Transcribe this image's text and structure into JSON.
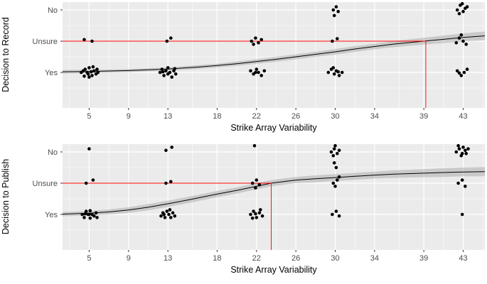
{
  "styles": {
    "panel_bg": "#EBEBEB",
    "grid": "#FFFFFF",
    "point": "#000000",
    "curve": "#000000",
    "ribbon": "#A0A0A0",
    "ribbon_opacity": 0.45,
    "reference": "#FF0000",
    "tick_text": "#4D4D4D",
    "axis_text": "#000000"
  },
  "chart_data": [
    {
      "type": "scatter",
      "subtype": "jittered points with logistic smooth and confidence ribbon",
      "title": "",
      "ylabel": "Decision to Record",
      "xlabel": "Strike Array Variability",
      "x_ticks": [
        5,
        9,
        13,
        18,
        22,
        26,
        30,
        34,
        39,
        43
      ],
      "x_range": [
        2.3,
        45.2
      ],
      "y_range": [
        -0.14,
        3.25
      ],
      "grid": true,
      "legend": false,
      "y_levels": [
        {
          "value": 1,
          "label": "Yes"
        },
        {
          "value": 2,
          "label": "Unsure"
        },
        {
          "value": 3,
          "label": "No"
        }
      ],
      "reference": {
        "x": 39.2,
        "y": 2,
        "note": "red crosshair where smooth crosses Unsure"
      },
      "points": [
        [
          4.2,
          1.0
        ],
        [
          4.5,
          0.88
        ],
        [
          4.6,
          1.1
        ],
        [
          4.8,
          1.0
        ],
        [
          5.0,
          0.85
        ],
        [
          5.0,
          1.15
        ],
        [
          5.2,
          1.02
        ],
        [
          5.3,
          0.9
        ],
        [
          5.5,
          1.05
        ],
        [
          5.7,
          0.95
        ],
        [
          5.8,
          1.1
        ],
        [
          4.4,
          1.05
        ],
        [
          5.9,
          1.0
        ],
        [
          4.9,
          0.95
        ],
        [
          5.4,
          1.18
        ],
        [
          12.2,
          1.0
        ],
        [
          12.4,
          1.1
        ],
        [
          12.6,
          0.9
        ],
        [
          12.8,
          1.05
        ],
        [
          13.0,
          0.95
        ],
        [
          13.0,
          1.15
        ],
        [
          13.2,
          1.0
        ],
        [
          13.4,
          0.85
        ],
        [
          13.6,
          1.05
        ],
        [
          13.8,
          0.95
        ],
        [
          12.5,
          1.02
        ],
        [
          13.7,
          1.12
        ],
        [
          21.4,
          1.05
        ],
        [
          21.7,
          0.95
        ],
        [
          22.0,
          1.1
        ],
        [
          22.2,
          1.0
        ],
        [
          22.5,
          0.9
        ],
        [
          22.8,
          1.05
        ],
        [
          21.9,
          1.0
        ],
        [
          29.3,
          1.0
        ],
        [
          29.6,
          1.1
        ],
        [
          29.9,
          0.95
        ],
        [
          30.1,
          1.05
        ],
        [
          30.4,
          0.9
        ],
        [
          30.7,
          1.0
        ],
        [
          29.8,
          1.15
        ],
        [
          30.3,
          1.02
        ],
        [
          42.4,
          1.05
        ],
        [
          42.8,
          0.9
        ],
        [
          43.1,
          1.0
        ],
        [
          43.4,
          1.1
        ],
        [
          42.6,
          0.98
        ],
        [
          4.5,
          2.05
        ],
        [
          5.3,
          2.0
        ],
        [
          12.9,
          2.0
        ],
        [
          13.3,
          2.1
        ],
        [
          21.5,
          2.0
        ],
        [
          21.9,
          2.1
        ],
        [
          22.2,
          1.95
        ],
        [
          22.5,
          2.05
        ],
        [
          21.7,
          1.9
        ],
        [
          29.7,
          2.0
        ],
        [
          30.2,
          2.08
        ],
        [
          42.3,
          1.95
        ],
        [
          42.6,
          2.1
        ],
        [
          43.0,
          2.0
        ],
        [
          43.3,
          1.9
        ],
        [
          42.8,
          2.2
        ],
        [
          29.8,
          3.0
        ],
        [
          30.1,
          3.1
        ],
        [
          30.3,
          2.95
        ],
        [
          29.9,
          2.82
        ],
        [
          42.4,
          3.0
        ],
        [
          42.7,
          3.15
        ],
        [
          43.0,
          2.95
        ],
        [
          43.2,
          3.05
        ],
        [
          42.6,
          2.88
        ],
        [
          43.4,
          3.1
        ],
        [
          42.9,
          3.2
        ]
      ],
      "curve": {
        "x": [
          2.3,
          5,
          9,
          13,
          16,
          18,
          20,
          22,
          24,
          26,
          28,
          30,
          32,
          34,
          36,
          39,
          41,
          43,
          45.2
        ],
        "y": [
          1.02,
          1.03,
          1.06,
          1.11,
          1.17,
          1.22,
          1.28,
          1.35,
          1.42,
          1.5,
          1.58,
          1.66,
          1.75,
          1.83,
          1.91,
          2.0,
          2.06,
          2.12,
          2.17
        ]
      },
      "ribbon": {
        "upper": [
          1.08,
          1.08,
          1.11,
          1.16,
          1.23,
          1.28,
          1.35,
          1.42,
          1.5,
          1.58,
          1.66,
          1.75,
          1.84,
          1.92,
          2.01,
          2.11,
          2.18,
          2.25,
          2.31
        ],
        "lower": [
          0.96,
          0.98,
          1.01,
          1.06,
          1.11,
          1.16,
          1.21,
          1.28,
          1.34,
          1.42,
          1.5,
          1.57,
          1.66,
          1.74,
          1.81,
          1.89,
          1.94,
          1.99,
          2.03
        ]
      }
    },
    {
      "type": "scatter",
      "subtype": "jittered points with logistic smooth and confidence ribbon",
      "title": "",
      "ylabel": "Decision to Publish",
      "xlabel": "Strike Array Variability",
      "x_ticks": [
        5,
        9,
        13,
        18,
        22,
        26,
        30,
        34,
        39,
        43
      ],
      "x_range": [
        2.3,
        45.2
      ],
      "y_range": [
        -0.14,
        3.25
      ],
      "grid": true,
      "legend": false,
      "y_levels": [
        {
          "value": 1,
          "label": "Yes"
        },
        {
          "value": 2,
          "label": "Unsure"
        },
        {
          "value": 3,
          "label": "No"
        }
      ],
      "reference": {
        "x": 23.5,
        "y": 2,
        "note": "red crosshair where smooth crosses Unsure"
      },
      "points": [
        [
          4.3,
          1.0
        ],
        [
          4.5,
          0.9
        ],
        [
          4.7,
          1.1
        ],
        [
          4.9,
          1.0
        ],
        [
          5.1,
          0.88
        ],
        [
          5.1,
          1.12
        ],
        [
          5.3,
          1.0
        ],
        [
          5.5,
          0.95
        ],
        [
          5.7,
          1.05
        ],
        [
          4.6,
          1.02
        ],
        [
          5.8,
          0.9
        ],
        [
          5.0,
          1.0
        ],
        [
          12.3,
          0.95
        ],
        [
          12.5,
          1.05
        ],
        [
          12.7,
          0.9
        ],
        [
          12.9,
          1.1
        ],
        [
          13.1,
          1.0
        ],
        [
          13.3,
          0.9
        ],
        [
          13.5,
          1.05
        ],
        [
          13.7,
          0.95
        ],
        [
          12.6,
          1.0
        ],
        [
          13.2,
          1.15
        ],
        [
          21.4,
          1.0
        ],
        [
          21.7,
          1.1
        ],
        [
          22.0,
          0.9
        ],
        [
          22.3,
          1.05
        ],
        [
          22.6,
          0.95
        ],
        [
          21.9,
          1.02
        ],
        [
          22.4,
          1.15
        ],
        [
          21.6,
          0.88
        ],
        [
          29.7,
          1.0
        ],
        [
          30.1,
          1.1
        ],
        [
          30.4,
          0.95
        ],
        [
          42.9,
          1.0
        ],
        [
          4.7,
          2.0
        ],
        [
          5.4,
          2.1
        ],
        [
          12.8,
          2.0
        ],
        [
          13.3,
          2.05
        ],
        [
          21.6,
          2.0
        ],
        [
          22.0,
          2.1
        ],
        [
          22.3,
          1.95
        ],
        [
          21.9,
          1.85
        ],
        [
          29.8,
          2.0
        ],
        [
          30.2,
          2.1
        ],
        [
          30.0,
          1.9
        ],
        [
          30.4,
          2.2
        ],
        [
          30.1,
          2.5
        ],
        [
          29.9,
          2.65
        ],
        [
          42.5,
          2.0
        ],
        [
          42.9,
          2.1
        ],
        [
          43.2,
          1.9
        ],
        [
          5.0,
          3.1
        ],
        [
          12.8,
          3.05
        ],
        [
          13.4,
          3.15
        ],
        [
          21.8,
          3.2
        ],
        [
          29.6,
          3.0
        ],
        [
          29.9,
          3.1
        ],
        [
          30.2,
          2.95
        ],
        [
          30.4,
          3.05
        ],
        [
          30.0,
          3.2
        ],
        [
          29.8,
          2.88
        ],
        [
          42.3,
          3.0
        ],
        [
          42.6,
          3.1
        ],
        [
          42.9,
          2.95
        ],
        [
          43.2,
          3.05
        ],
        [
          43.5,
          3.1
        ],
        [
          42.5,
          3.2
        ],
        [
          43.0,
          3.15
        ],
        [
          42.8,
          2.88
        ],
        [
          43.3,
          2.95
        ]
      ],
      "curve": {
        "x": [
          2.3,
          5,
          7,
          9,
          11,
          13,
          15,
          18,
          20,
          22,
          23.5,
          26,
          28,
          30,
          32,
          34,
          36,
          39,
          41,
          43,
          45.2
        ],
        "y": [
          1.01,
          1.04,
          1.08,
          1.14,
          1.23,
          1.34,
          1.46,
          1.65,
          1.77,
          1.9,
          2.0,
          2.1,
          2.14,
          2.18,
          2.22,
          2.26,
          2.29,
          2.32,
          2.34,
          2.36,
          2.37
        ]
      },
      "ribbon": {
        "upper": [
          1.08,
          1.11,
          1.16,
          1.23,
          1.33,
          1.44,
          1.56,
          1.75,
          1.87,
          2.0,
          2.1,
          2.2,
          2.25,
          2.29,
          2.33,
          2.37,
          2.41,
          2.45,
          2.48,
          2.5,
          2.52
        ],
        "lower": [
          0.94,
          0.97,
          1.0,
          1.05,
          1.13,
          1.24,
          1.36,
          1.55,
          1.67,
          1.8,
          1.9,
          2.0,
          2.03,
          2.07,
          2.11,
          2.15,
          2.17,
          2.19,
          2.2,
          2.22,
          2.22
        ]
      }
    }
  ]
}
